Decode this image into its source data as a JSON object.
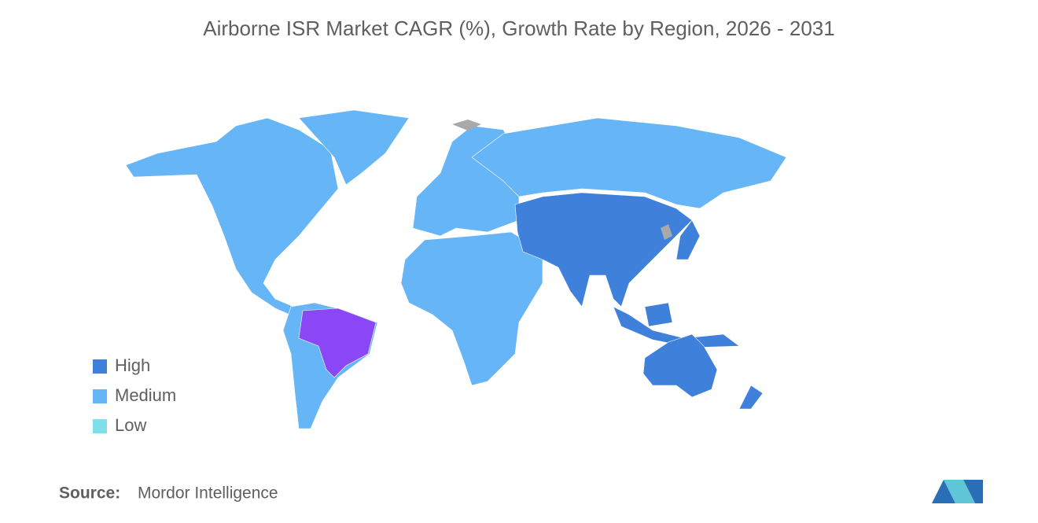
{
  "title": "Airborne ISR Market CAGR (%), Growth Rate by Region, 2026 - 2031",
  "legend": [
    {
      "label": "High",
      "color": "#3f80da"
    },
    {
      "label": "Medium",
      "color": "#66b5f7"
    },
    {
      "label": "Low",
      "color": "#7fdfeb"
    }
  ],
  "source": {
    "label": "Source:",
    "text": "Mordor Intelligence"
  }
}
